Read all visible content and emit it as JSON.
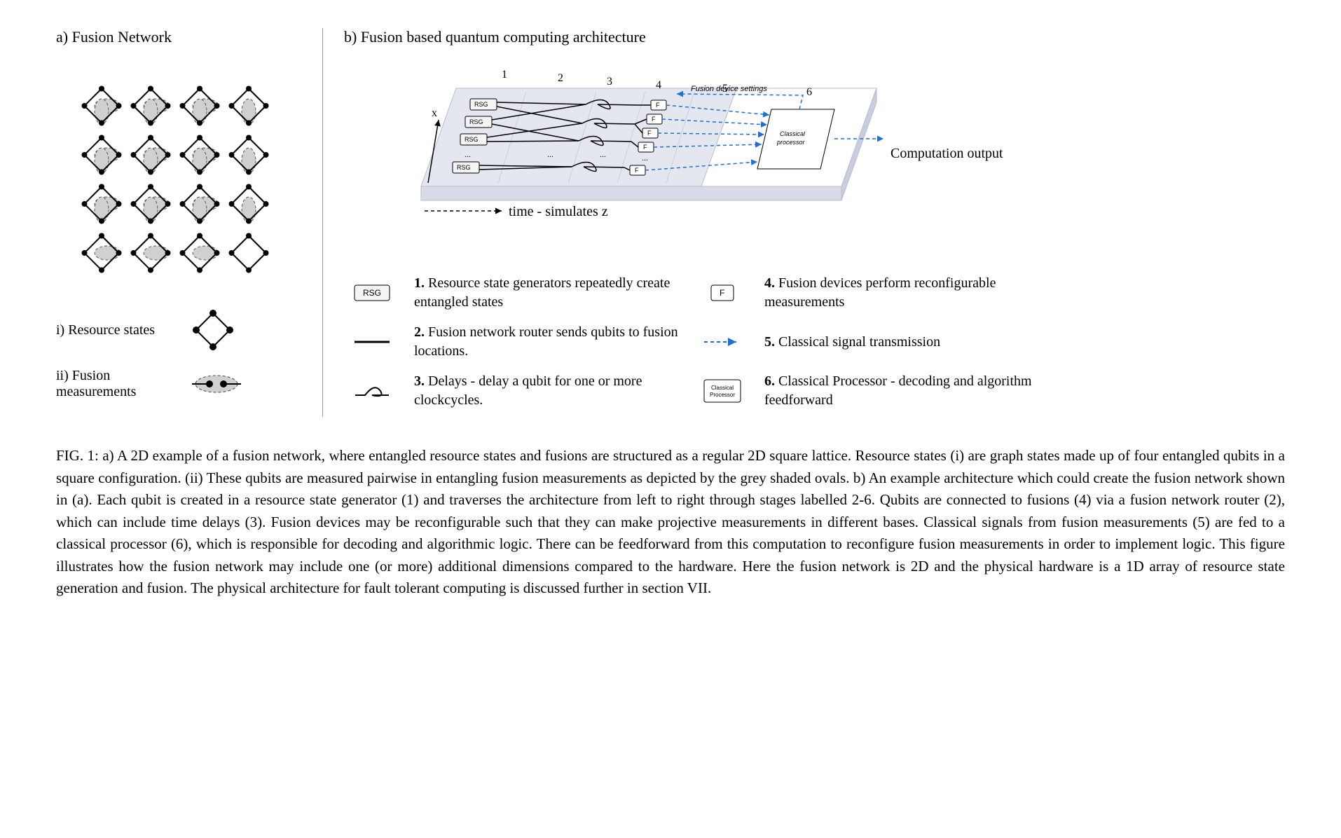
{
  "panelA": {
    "title": "a) Fusion Network",
    "legend_i_label": "i) Resource states",
    "legend_ii_label": "ii) Fusion measurements",
    "lattice": {
      "rows": 4,
      "cols": 4,
      "node_color": "#000000",
      "edge_color": "#000000",
      "fusion_fill": "#d0d0d0",
      "fusion_dash": "4,3",
      "node_radius": 4
    }
  },
  "panelB": {
    "title": "b) Fusion based quantum computing architecture",
    "stage_labels": [
      "1",
      "2",
      "3",
      "4",
      "5",
      "6"
    ],
    "x_axis_label": "x",
    "time_label": "time - simulates z",
    "fusion_settings_label": "Fusion device settings",
    "processor_label": "Classical processor",
    "output_label": "Computation output",
    "rsg_label": "RSG",
    "f_label": "F",
    "ellipsis": "...",
    "palette": {
      "chip_fill": "#e4e7f0",
      "chip_edge": "#b7bdd0",
      "white_area": "#ffffff",
      "signal_arrow": "#1e6fd9",
      "feedback_arrow": "#1e6fd9"
    },
    "legend": {
      "items": [
        {
          "key": "rsg",
          "num": "1.",
          "text": "Resource state generators repeatedly create entangled states"
        },
        {
          "key": "router",
          "num": "2.",
          "text": "Fusion network router sends qubits to fusion locations."
        },
        {
          "key": "delay",
          "num": "3.",
          "text": "Delays - delay a qubit for one or more clockcycles."
        },
        {
          "key": "fuse",
          "num": "4.",
          "text": "Fusion devices perform reconfigurable measurements"
        },
        {
          "key": "signal",
          "num": "5.",
          "text": "Classical signal transmission"
        },
        {
          "key": "proc",
          "num": "6.",
          "text": "Classical Processor - decoding and algorithm feedforward"
        }
      ]
    }
  },
  "caption": {
    "label": "FIG. 1:",
    "text": "a) A 2D example of a fusion network, where entangled resource states and fusions are structured as a regular 2D square lattice. Resource states (i) are graph states made up of four entangled qubits in a square configuration. (ii) These qubits are measured pairwise in entangling fusion measurements as depicted by the grey shaded ovals.  b) An example architecture which could create the fusion network shown in (a). Each qubit is created in a resource state generator (1) and traverses the architecture from left to right through stages labelled 2-6. Qubits are connected to fusions (4) via a fusion network router (2), which can include time delays (3). Fusion devices may be reconfigurable such that they can make projective measurements in different bases. Classical signals from fusion measurements (5) are fed to a classical processor (6), which is responsible for decoding and algorithmic logic. There can be feedforward from this computation to reconfigure fusion measurements in order to implement logic. This figure illustrates how the fusion network may include one (or more) additional dimensions compared to the hardware. Here the fusion network is 2D and the physical hardware is a 1D array of resource state generation and fusion. The physical architecture for fault tolerant computing is discussed further in section VII."
  }
}
